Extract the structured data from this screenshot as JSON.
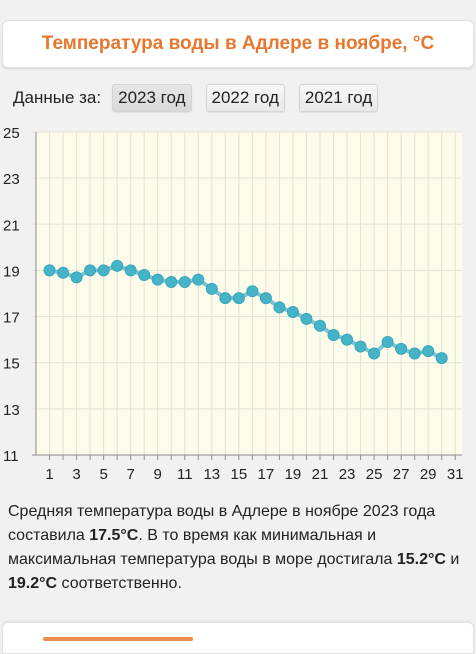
{
  "header": {
    "title": "Температура воды в Адлере в ноябре, °C"
  },
  "years": {
    "label": "Данные за:",
    "options": [
      "2023 год",
      "2022 год",
      "2021 год"
    ],
    "selected": "2023 год"
  },
  "colors": {
    "accent": "#e8772e",
    "series": "#46b4c8",
    "series_line": "#7ac4d4",
    "plot_bg": "#fdfbea",
    "grid": "#e4e1d2"
  },
  "chart_data": {
    "type": "line",
    "x": [
      1,
      2,
      3,
      4,
      5,
      6,
      7,
      8,
      9,
      10,
      11,
      12,
      13,
      14,
      15,
      16,
      17,
      18,
      19,
      20,
      21,
      22,
      23,
      24,
      25,
      26,
      27,
      28,
      29,
      30
    ],
    "series": [
      {
        "values": [
          19.0,
          18.9,
          18.7,
          19.0,
          19.0,
          19.2,
          19.0,
          18.8,
          18.6,
          18.5,
          18.5,
          18.6,
          18.2,
          17.8,
          17.8,
          18.1,
          17.8,
          17.4,
          17.2,
          16.9,
          16.6,
          16.2,
          16.0,
          15.7,
          15.4,
          15.9,
          15.6,
          15.4,
          15.5,
          15.2
        ]
      }
    ],
    "xlim": [
      0,
      31.5
    ],
    "ylim": [
      11,
      25
    ],
    "x_ticks": [
      1,
      3,
      5,
      7,
      9,
      11,
      13,
      15,
      17,
      19,
      21,
      23,
      25,
      27,
      29,
      31
    ],
    "y_ticks": [
      11,
      13,
      15,
      17,
      19,
      21,
      23,
      25
    ],
    "grid": true
  },
  "summary": {
    "p1": "Средняя температура воды в Адлере в ноябре 2023 года составила ",
    "avg": "17.5°C",
    "p2": ". В то время как минимальная и максимальная температура воды в море достигала ",
    "min": "15.2°C",
    "p3": " и ",
    "max": "19.2°C",
    "p4": " соответственно."
  }
}
